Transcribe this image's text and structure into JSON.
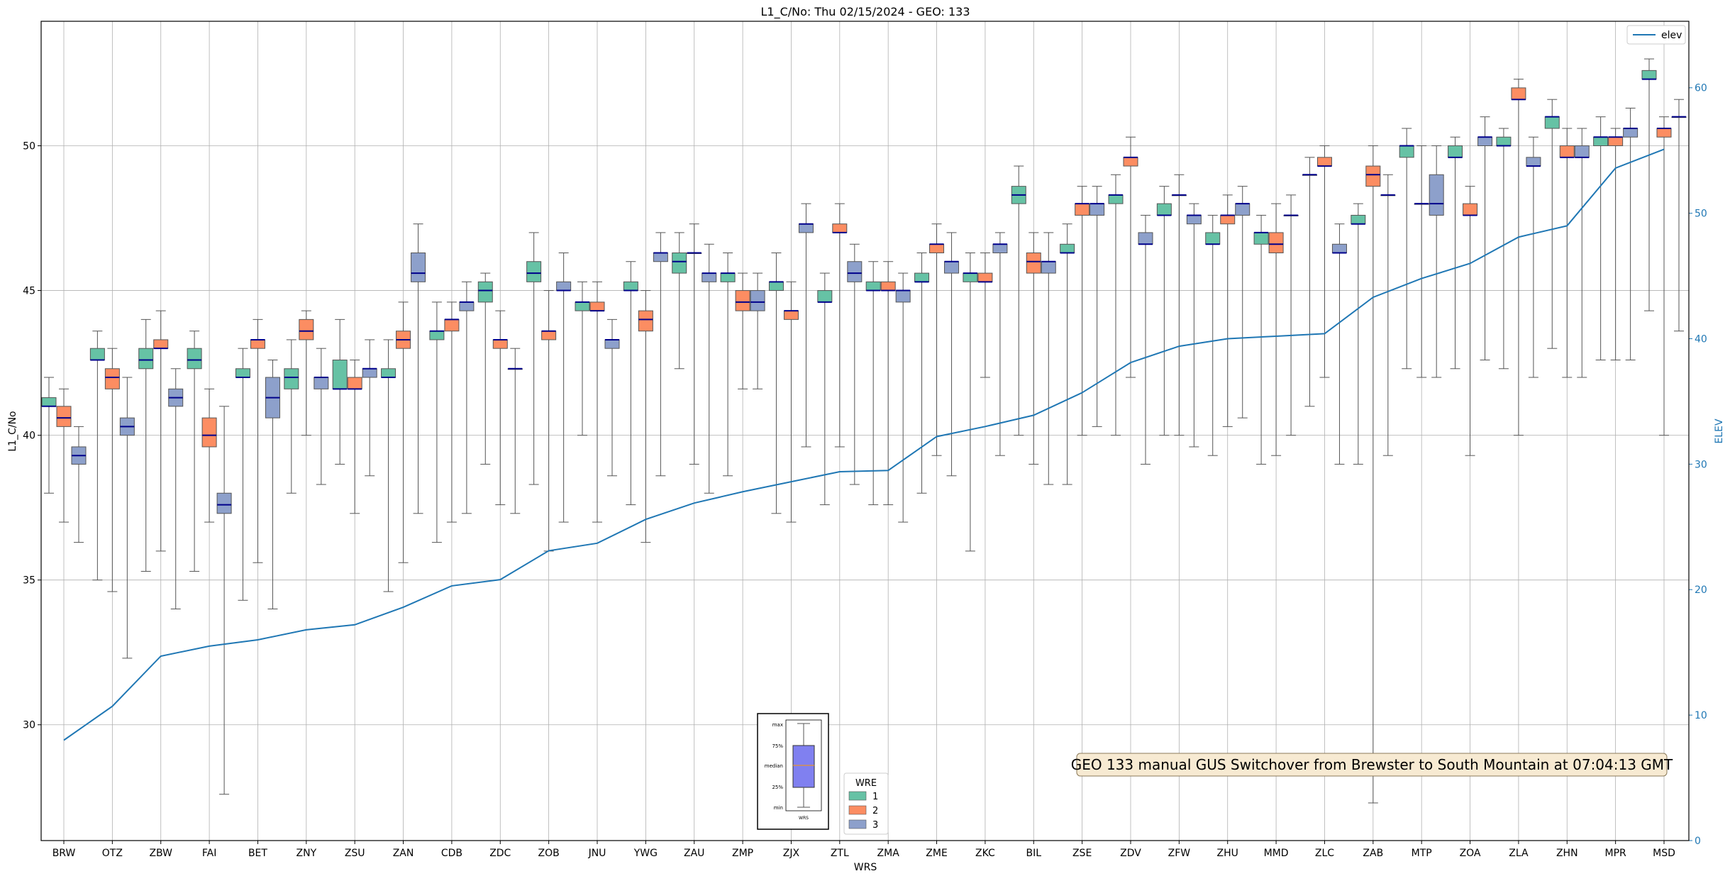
{
  "chart_data": {
    "type": "box",
    "title": "L1_C/No: Thu 02/15/2024 - GEO: 133",
    "xlabel": "WRS",
    "ylabel": "L1_C/No",
    "y2label": "ELEV",
    "ylim": [
      26,
      54.3
    ],
    "y2lim": [
      0,
      65.3
    ],
    "yticks": [
      30,
      35,
      40,
      45,
      50
    ],
    "y2ticks": [
      0,
      10,
      20,
      30,
      40,
      50,
      60
    ],
    "grid": true,
    "categories": [
      "BRW",
      "OTZ",
      "ZBW",
      "FAI",
      "BET",
      "ZNY",
      "ZSU",
      "ZAN",
      "CDB",
      "ZDC",
      "ZOB",
      "JNU",
      "YWG",
      "ZAU",
      "ZMP",
      "ZJX",
      "ZTL",
      "ZMA",
      "ZME",
      "ZKC",
      "BIL",
      "ZSE",
      "ZDV",
      "ZFW",
      "ZHU",
      "MMD",
      "ZLC",
      "ZAB",
      "MTP",
      "ZOA",
      "ZLA",
      "ZHN",
      "MPR",
      "MSD"
    ],
    "box_legend_title": "WRE",
    "series": [
      {
        "name": "1",
        "color": "#66c2a5",
        "boxes": [
          [
            38.0,
            41.0,
            41.0,
            41.3,
            42.0
          ],
          [
            35.0,
            42.6,
            42.6,
            43.0,
            43.6
          ],
          [
            35.3,
            42.3,
            42.6,
            43.0,
            44.0
          ],
          [
            35.3,
            42.3,
            42.6,
            43.0,
            43.6
          ],
          [
            34.3,
            42.0,
            42.0,
            42.3,
            43.0
          ],
          [
            38.0,
            41.6,
            42.0,
            42.3,
            43.3
          ],
          [
            39.0,
            41.6,
            41.6,
            42.6,
            44.0
          ],
          [
            34.6,
            42.0,
            42.0,
            42.3,
            43.3
          ],
          [
            36.3,
            43.3,
            43.6,
            43.6,
            44.6
          ],
          [
            39.0,
            44.6,
            45.0,
            45.3,
            45.6
          ],
          [
            38.3,
            45.3,
            45.6,
            46.0,
            47.0
          ],
          [
            40.0,
            44.3,
            44.6,
            44.6,
            45.3
          ],
          [
            37.6,
            45.0,
            45.0,
            45.3,
            46.0
          ],
          [
            42.3,
            45.6,
            46.0,
            46.3,
            47.0
          ],
          [
            38.6,
            45.3,
            45.6,
            45.6,
            46.3
          ],
          [
            37.3,
            45.0,
            45.3,
            45.3,
            46.3
          ],
          [
            37.6,
            44.6,
            44.6,
            45.0,
            45.6
          ],
          [
            37.6,
            45.0,
            45.0,
            45.3,
            46.0
          ],
          [
            38.0,
            45.3,
            45.3,
            45.6,
            46.3
          ],
          [
            36.0,
            45.3,
            45.6,
            45.6,
            46.3
          ],
          [
            40.0,
            48.0,
            48.3,
            48.6,
            49.3
          ],
          [
            38.3,
            46.3,
            46.3,
            46.6,
            47.3
          ],
          [
            40.0,
            48.0,
            48.3,
            48.3,
            49.0
          ],
          [
            40.0,
            47.6,
            47.6,
            48.0,
            48.6
          ],
          [
            39.3,
            46.6,
            46.6,
            47.0,
            47.6
          ],
          [
            39.0,
            46.6,
            47.0,
            47.0,
            47.6
          ],
          [
            41.0,
            49.0,
            49.0,
            49.0,
            49.6
          ],
          [
            39.0,
            47.3,
            47.3,
            47.6,
            48.0
          ],
          [
            42.3,
            49.6,
            50.0,
            50.0,
            50.6
          ],
          [
            42.3,
            49.6,
            49.6,
            50.0,
            50.3
          ],
          [
            42.3,
            50.0,
            50.0,
            50.3,
            50.6
          ],
          [
            43.0,
            50.6,
            51.0,
            51.0,
            51.6
          ],
          [
            42.6,
            50.0,
            50.3,
            50.3,
            51.0
          ],
          [
            44.3,
            52.3,
            52.3,
            52.6,
            53.0
          ]
        ]
      },
      {
        "name": "2",
        "color": "#fc8d62",
        "boxes": [
          [
            37.0,
            40.3,
            40.6,
            41.0,
            41.6
          ],
          [
            34.6,
            41.6,
            42.0,
            42.3,
            43.0
          ],
          [
            36.0,
            43.0,
            43.0,
            43.3,
            44.3
          ],
          [
            37.0,
            39.6,
            40.0,
            40.6,
            41.6
          ],
          [
            35.6,
            43.0,
            43.3,
            43.3,
            44.0
          ],
          [
            40.0,
            43.3,
            43.6,
            44.0,
            44.3
          ],
          [
            37.3,
            41.6,
            41.6,
            42.0,
            42.6
          ],
          [
            35.6,
            43.0,
            43.3,
            43.6,
            44.6
          ],
          [
            37.0,
            43.6,
            44.0,
            44.0,
            44.6
          ],
          [
            37.6,
            43.0,
            43.3,
            43.3,
            44.3
          ],
          [
            36.0,
            43.3,
            43.6,
            43.6,
            45.0
          ],
          [
            37.0,
            44.3,
            44.3,
            44.6,
            45.3
          ],
          [
            36.3,
            43.6,
            44.0,
            44.3,
            45.0
          ],
          [
            39.0,
            46.3,
            46.3,
            46.3,
            47.3
          ],
          [
            41.6,
            44.3,
            44.6,
            45.0,
            45.6
          ],
          [
            37.0,
            44.0,
            44.3,
            44.3,
            45.3
          ],
          [
            39.6,
            47.0,
            47.0,
            47.3,
            48.0
          ],
          [
            37.6,
            45.0,
            45.0,
            45.3,
            46.0
          ],
          [
            39.3,
            46.3,
            46.6,
            46.6,
            47.3
          ],
          [
            42.0,
            45.3,
            45.3,
            45.6,
            46.3
          ],
          [
            39.0,
            45.6,
            46.0,
            46.3,
            47.0
          ],
          [
            40.0,
            47.6,
            48.0,
            48.0,
            48.6
          ],
          [
            42.0,
            49.3,
            49.6,
            49.6,
            50.3
          ],
          [
            40.0,
            48.3,
            48.3,
            48.3,
            49.0
          ],
          [
            40.3,
            47.3,
            47.6,
            47.6,
            48.3
          ],
          [
            39.3,
            46.3,
            46.6,
            47.0,
            48.0
          ],
          [
            42.0,
            49.3,
            49.3,
            49.6,
            50.0
          ],
          [
            27.3,
            48.6,
            49.0,
            49.3,
            50.0
          ],
          [
            42.0,
            48.0,
            48.0,
            48.0,
            50.0
          ],
          [
            39.3,
            47.6,
            47.6,
            48.0,
            48.6
          ],
          [
            40.0,
            51.6,
            51.6,
            52.0,
            52.3
          ],
          [
            42.0,
            49.6,
            49.6,
            50.0,
            50.6
          ],
          [
            42.6,
            50.0,
            50.3,
            50.3,
            50.6
          ],
          [
            40.0,
            50.3,
            50.6,
            50.6,
            51.0
          ]
        ]
      },
      {
        "name": "3",
        "color": "#8da0cb",
        "boxes": [
          [
            36.3,
            39.0,
            39.3,
            39.6,
            40.3
          ],
          [
            32.3,
            40.0,
            40.3,
            40.6,
            42.0
          ],
          [
            34.0,
            41.0,
            41.3,
            41.6,
            42.3
          ],
          [
            27.6,
            37.3,
            37.6,
            38.0,
            41.0
          ],
          [
            34.0,
            40.6,
            41.3,
            42.0,
            42.6
          ],
          [
            38.3,
            41.6,
            42.0,
            42.0,
            43.0
          ],
          [
            38.6,
            42.0,
            42.3,
            42.3,
            43.3
          ],
          [
            37.3,
            45.3,
            45.6,
            46.3,
            47.3
          ],
          [
            37.3,
            44.3,
            44.6,
            44.6,
            45.3
          ],
          [
            37.3,
            42.3,
            42.3,
            42.3,
            43.0
          ],
          [
            37.0,
            45.0,
            45.0,
            45.3,
            46.3
          ],
          [
            38.6,
            43.0,
            43.3,
            43.3,
            44.0
          ],
          [
            38.6,
            46.0,
            46.3,
            46.3,
            47.0
          ],
          [
            38.0,
            45.3,
            45.6,
            45.6,
            46.6
          ],
          [
            41.6,
            44.3,
            44.6,
            45.0,
            45.6
          ],
          [
            39.6,
            47.0,
            47.3,
            47.3,
            48.0
          ],
          [
            38.3,
            45.3,
            45.6,
            46.0,
            46.6
          ],
          [
            37.0,
            44.6,
            45.0,
            45.0,
            45.6
          ],
          [
            38.6,
            45.6,
            46.0,
            46.0,
            47.0
          ],
          [
            39.3,
            46.3,
            46.6,
            46.6,
            47.0
          ],
          [
            38.3,
            45.6,
            46.0,
            46.0,
            47.0
          ],
          [
            40.3,
            47.6,
            48.0,
            48.0,
            48.6
          ],
          [
            39.0,
            46.6,
            46.6,
            47.0,
            47.6
          ],
          [
            39.6,
            47.3,
            47.6,
            47.6,
            48.0
          ],
          [
            40.6,
            47.6,
            48.0,
            48.0,
            48.6
          ],
          [
            40.0,
            47.6,
            47.6,
            47.6,
            48.3
          ],
          [
            39.0,
            46.3,
            46.3,
            46.6,
            47.3
          ],
          [
            39.3,
            48.3,
            48.3,
            48.3,
            49.0
          ],
          [
            42.0,
            47.6,
            48.0,
            49.0,
            50.0
          ],
          [
            42.6,
            50.0,
            50.3,
            50.3,
            51.0
          ],
          [
            42.0,
            49.3,
            49.3,
            49.6,
            50.3
          ],
          [
            42.0,
            49.6,
            49.6,
            50.0,
            50.6
          ],
          [
            42.6,
            50.3,
            50.6,
            50.6,
            51.3
          ],
          [
            43.6,
            51.0,
            51.0,
            51.0,
            51.6
          ]
        ]
      }
    ],
    "line_series": {
      "name": "elev",
      "color": "#1f77b4",
      "values": [
        8.0,
        10.7,
        14.7,
        15.5,
        16.0,
        16.8,
        17.2,
        18.6,
        20.3,
        20.8,
        23.1,
        23.7,
        25.6,
        26.9,
        27.8,
        28.6,
        29.4,
        29.5,
        32.2,
        33.0,
        33.9,
        35.7,
        38.1,
        39.4,
        40.0,
        40.2,
        40.4,
        43.3,
        44.8,
        46.0,
        48.1,
        49.0,
        53.6,
        55.1
      ]
    },
    "line_legend_position": "top-right",
    "annotation": "GEO 133 manual GUS Switchover from Brewster to South Mountain at 07:04:13 GMT",
    "inset_key": {
      "labels": [
        "max",
        "75%",
        "median",
        "25%",
        "min"
      ],
      "xlabel": "WRS"
    }
  }
}
